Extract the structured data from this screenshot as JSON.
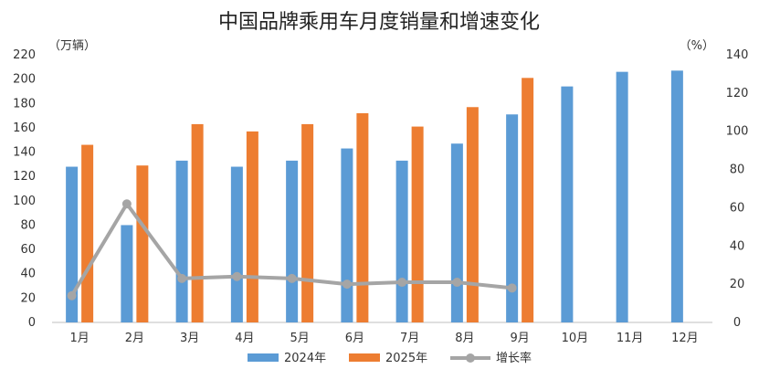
{
  "chart_data": {
    "type": "bar",
    "title": "中国品牌乘用车月度销量和增速变化",
    "left_unit": "（万辆）",
    "right_unit": "（%）",
    "categories": [
      "1月",
      "2月",
      "3月",
      "4月",
      "5月",
      "6月",
      "7月",
      "8月",
      "9月",
      "10月",
      "11月",
      "12月"
    ],
    "series": [
      {
        "name": "2024年",
        "type": "bar",
        "axis": "left",
        "color": "#5B9BD5",
        "values": [
          128,
          80,
          133,
          128,
          133,
          143,
          133,
          147,
          171,
          194,
          206,
          207
        ]
      },
      {
        "name": "2025年",
        "type": "bar",
        "axis": "left",
        "color": "#ED7D31",
        "values": [
          146,
          129,
          163,
          157,
          163,
          172,
          161,
          177,
          201,
          null,
          null,
          null
        ]
      },
      {
        "name": "增长率",
        "type": "line",
        "axis": "right",
        "color": "#A5A5A5",
        "values": [
          14,
          62,
          23,
          24,
          23,
          20,
          21,
          21,
          18,
          null,
          null,
          null
        ]
      }
    ],
    "left_axis": {
      "min": 0,
      "max": 220,
      "step": 20,
      "tick_labels": [
        "0",
        "20",
        "40",
        "60",
        "80",
        "100",
        "120",
        "140",
        "160",
        "180",
        "200",
        "220"
      ]
    },
    "right_axis": {
      "min": 0,
      "max": 140,
      "step": 20,
      "tick_labels": [
        "0",
        "20",
        "40",
        "60",
        "80",
        "100",
        "120",
        "140"
      ]
    },
    "grid": false,
    "legend_position": "bottom"
  }
}
